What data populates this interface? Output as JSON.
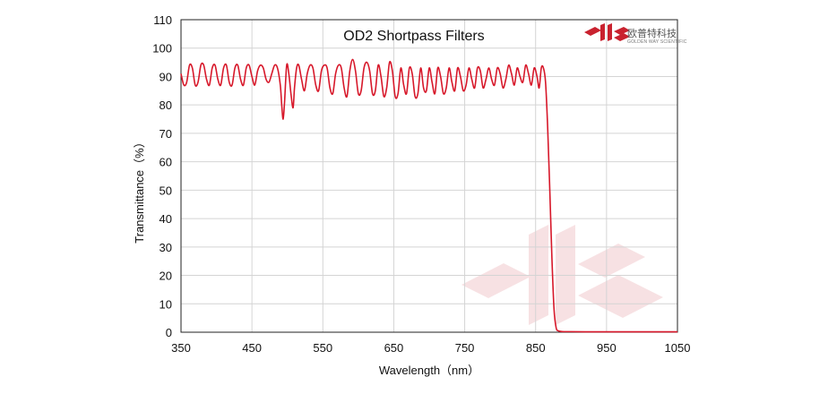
{
  "logo": {
    "text_cn": "欧普特科技",
    "text_en": "GOLDEN WAY SCIENTIFIC",
    "color": "#c9222f"
  },
  "chart_data": {
    "type": "line",
    "title": "OD2  Shortpass Filters",
    "xlabel": "Wavelength（nm）",
    "ylabel": "Transmittance（%）",
    "xlim": [
      350,
      1050
    ],
    "ylim": [
      0,
      110
    ],
    "xticks": [
      350,
      450,
      550,
      650,
      750,
      850,
      950,
      1050
    ],
    "yticks": [
      0,
      10,
      20,
      30,
      40,
      50,
      60,
      70,
      80,
      90,
      100,
      110
    ],
    "grid": true,
    "line_color": "#d7182a",
    "series": [
      {
        "x": [
          350,
          354,
          358,
          362,
          366,
          370,
          374,
          378,
          382,
          386,
          390,
          394,
          398,
          402,
          406,
          410,
          414,
          418,
          422,
          426,
          430,
          434,
          438,
          442,
          446,
          450,
          454,
          458,
          462,
          466,
          470,
          474,
          478,
          482,
          486,
          490,
          492,
          494,
          496,
          499,
          502,
          505,
          508,
          510,
          513,
          516,
          520,
          524,
          528,
          532,
          536,
          540,
          544,
          548,
          552,
          556,
          560,
          564,
          568,
          572,
          576,
          580,
          584,
          588,
          592,
          596,
          600,
          604,
          608,
          612,
          616,
          620,
          624,
          628,
          632,
          636,
          640,
          644,
          648,
          652,
          656,
          660,
          664,
          668,
          672,
          676,
          680,
          684,
          688,
          692,
          696,
          700,
          704,
          708,
          712,
          716,
          720,
          724,
          728,
          732,
          736,
          740,
          744,
          748,
          752,
          756,
          760,
          764,
          768,
          772,
          776,
          780,
          784,
          788,
          792,
          796,
          800,
          804,
          808,
          812,
          816,
          820,
          824,
          828,
          832,
          836,
          840,
          844,
          848,
          852,
          855,
          858,
          861,
          864,
          867,
          870,
          873,
          876,
          879,
          882,
          885,
          890,
          900,
          920,
          950,
          1000,
          1050
        ],
        "y": [
          91,
          87,
          88,
          94,
          93,
          87,
          88,
          94,
          94,
          89,
          87,
          93,
          94,
          89,
          87,
          93,
          94,
          88,
          87,
          93,
          94,
          89,
          87,
          93,
          94,
          90,
          87,
          92,
          94,
          93,
          89,
          88,
          91,
          94,
          93,
          87,
          80,
          75,
          81,
          94,
          91,
          84,
          79,
          86,
          93,
          94,
          89,
          85,
          91,
          94,
          93,
          87,
          85,
          92,
          94,
          93,
          86,
          84,
          91,
          94,
          93,
          86,
          83,
          92,
          96,
          92,
          84,
          85,
          93,
          95,
          92,
          84,
          85,
          94,
          90,
          83,
          86,
          95,
          92,
          83,
          84,
          93,
          87,
          84,
          93,
          91,
          83,
          84,
          93,
          86,
          85,
          93,
          88,
          84,
          93,
          90,
          84,
          86,
          93,
          88,
          85,
          93,
          90,
          85,
          87,
          93,
          89,
          86,
          93,
          92,
          86,
          89,
          93,
          89,
          87,
          93,
          91,
          86,
          89,
          94,
          91,
          87,
          93,
          90,
          88,
          94,
          91,
          87,
          93,
          90,
          86,
          93,
          93,
          88,
          72,
          50,
          26,
          8,
          1.5,
          0.5,
          0.3,
          0.2,
          0.2,
          0.15,
          0.15,
          0.15,
          0.15
        ]
      }
    ]
  }
}
